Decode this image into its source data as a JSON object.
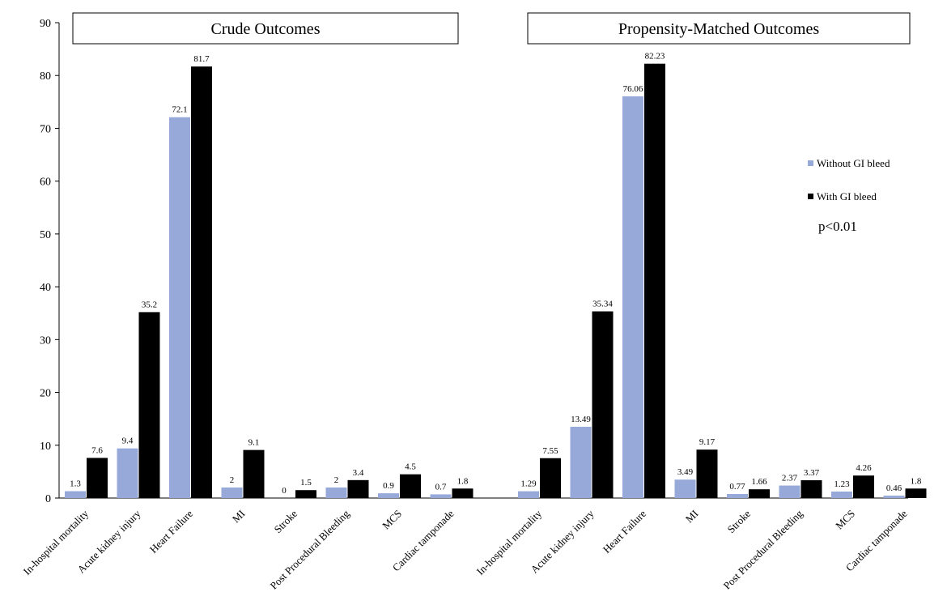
{
  "chart_data": {
    "type": "bar",
    "ylim": [
      0,
      90
    ],
    "yticks": [
      0,
      10,
      20,
      30,
      40,
      50,
      60,
      70,
      80,
      90
    ],
    "categories": [
      "In-hospital mortality",
      "Acute kidney injury",
      "Heart Failure",
      "MI",
      "Stroke",
      "Post Procedural Bleeding",
      "MCS",
      "Cardiac tamponade"
    ],
    "panels": [
      {
        "title": "Crude Outcomes",
        "series": [
          {
            "name": "Without GI bleed",
            "values": [
              1.3,
              9.4,
              72.1,
              2,
              0,
              2,
              0.9,
              0.7
            ],
            "labels": [
              "1.3",
              "9.4",
              "72.1",
              "2",
              "0",
              "2",
              "0.9",
              "0.7"
            ]
          },
          {
            "name": "With GI bleed",
            "values": [
              7.6,
              35.2,
              81.7,
              9.1,
              1.5,
              3.4,
              4.5,
              1.8
            ],
            "labels": [
              "7.6",
              "35.2",
              "81.7",
              "9.1",
              "1.5",
              "3.4",
              "4.5",
              "1.8"
            ]
          }
        ]
      },
      {
        "title": "Propensity-Matched Outcomes",
        "series": [
          {
            "name": "Without GI bleed",
            "values": [
              1.29,
              13.49,
              76.06,
              3.49,
              0.77,
              2.37,
              1.23,
              0.46
            ],
            "labels": [
              "1.29",
              "13.49",
              "76.06",
              "3.49",
              "0.77",
              "2.37",
              "1.23",
              "0.46"
            ]
          },
          {
            "name": "With GI bleed",
            "values": [
              7.55,
              35.34,
              82.23,
              9.17,
              1.66,
              3.37,
              4.26,
              1.8
            ],
            "labels": [
              "7.55",
              "35.34",
              "82.23",
              "9.17",
              "1.66",
              "3.37",
              "4.26",
              "1.8"
            ]
          }
        ]
      }
    ],
    "legend": {
      "position": "right",
      "entries": [
        "Without GI bleed",
        "With GI bleed"
      ]
    },
    "annotation": "p<0.01",
    "colors": {
      "without": "#97a9d9",
      "with": "#000000"
    }
  }
}
